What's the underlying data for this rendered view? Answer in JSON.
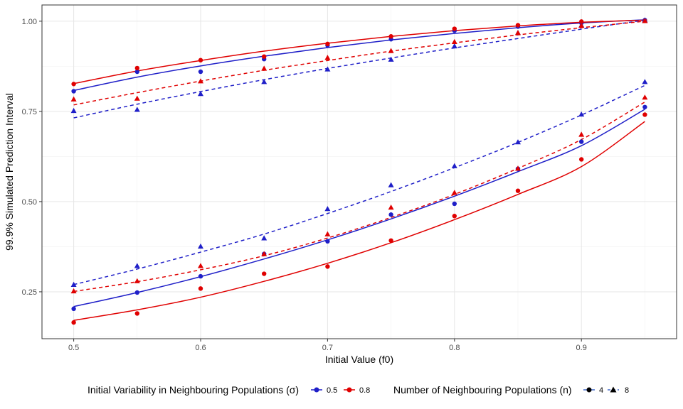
{
  "chart_data": {
    "type": "scatter",
    "xlabel": "Initial Value (f0)",
    "ylabel": "99.9% Simulated Prediction Interval",
    "xlim": [
      0.475,
      0.975
    ],
    "ylim": [
      0.12,
      1.045
    ],
    "x_ticks": [
      {
        "value": 0.5,
        "label": "0.5"
      },
      {
        "value": 0.6,
        "label": "0.6"
      },
      {
        "value": 0.7,
        "label": "0.7"
      },
      {
        "value": 0.8,
        "label": "0.8"
      },
      {
        "value": 0.9,
        "label": "0.9"
      }
    ],
    "y_ticks": [
      {
        "value": 0.25,
        "label": "0.25"
      },
      {
        "value": 0.5,
        "label": "0.50"
      },
      {
        "value": 0.75,
        "label": "0.75"
      },
      {
        "value": 1.0,
        "label": "1.00"
      }
    ],
    "grid": true,
    "legend_position": "bottom",
    "colors": {
      "sigma_0.5": "#1f1fc8",
      "sigma_0.8": "#e00000"
    },
    "x": [
      0.5,
      0.55,
      0.6,
      0.65,
      0.7,
      0.75,
      0.8,
      0.85,
      0.9,
      0.95
    ],
    "series": [
      {
        "sigma": "0.5",
        "n": "4",
        "bound": "upper",
        "points": [
          0.806,
          0.86,
          0.86,
          0.895,
          0.933,
          0.95,
          0.974,
          0.985,
          0.995,
          1.003
        ],
        "fit": [
          0.808,
          0.845,
          0.876,
          0.903,
          0.927,
          0.948,
          0.966,
          0.982,
          0.995,
          1.004
        ]
      },
      {
        "sigma": "0.8",
        "n": "4",
        "bound": "upper",
        "points": [
          0.826,
          0.87,
          0.892,
          0.902,
          0.937,
          0.958,
          0.979,
          0.989,
          0.999,
          1.001
        ],
        "fit": [
          0.827,
          0.862,
          0.891,
          0.917,
          0.939,
          0.958,
          0.974,
          0.987,
          0.997,
          1.003
        ]
      },
      {
        "sigma": "0.5",
        "n": "8",
        "bound": "upper",
        "points": [
          0.752,
          0.755,
          0.799,
          0.832,
          0.867,
          0.894,
          0.931,
          0.968,
          0.989,
          1.003
        ],
        "fit": [
          0.732,
          0.77,
          0.805,
          0.838,
          0.869,
          0.898,
          0.926,
          0.952,
          0.978,
          1.003
        ]
      },
      {
        "sigma": "0.8",
        "n": "8",
        "bound": "upper",
        "points": [
          0.784,
          0.786,
          0.834,
          0.869,
          0.899,
          0.918,
          0.943,
          0.968,
          0.988,
          1.001
        ],
        "fit": [
          0.768,
          0.802,
          0.834,
          0.864,
          0.891,
          0.917,
          0.94,
          0.962,
          0.982,
          1.0
        ]
      },
      {
        "sigma": "0.5",
        "n": "4",
        "bound": "lower",
        "points": [
          0.203,
          0.248,
          0.293,
          0.355,
          0.39,
          0.464,
          0.494,
          0.591,
          0.666,
          0.762
        ],
        "fit": [
          0.209,
          0.248,
          0.292,
          0.341,
          0.394,
          0.452,
          0.515,
          0.583,
          0.655,
          0.756
        ]
      },
      {
        "sigma": "0.8",
        "n": "4",
        "bound": "lower",
        "points": [
          0.165,
          0.19,
          0.259,
          0.3,
          0.32,
          0.392,
          0.46,
          0.53,
          0.617,
          0.741
        ],
        "fit": [
          0.171,
          0.2,
          0.235,
          0.279,
          0.329,
          0.386,
          0.45,
          0.52,
          0.597,
          0.722
        ]
      },
      {
        "sigma": "0.5",
        "n": "8",
        "bound": "lower",
        "points": [
          0.27,
          0.322,
          0.376,
          0.399,
          0.48,
          0.546,
          0.599,
          0.665,
          0.742,
          0.832
        ],
        "fit": [
          0.27,
          0.313,
          0.36,
          0.41,
          0.467,
          0.528,
          0.594,
          0.664,
          0.74,
          0.822
        ]
      },
      {
        "sigma": "0.8",
        "n": "8",
        "bound": "lower",
        "points": [
          0.252,
          0.28,
          0.322,
          0.355,
          0.41,
          0.484,
          0.525,
          0.592,
          0.686,
          0.789
        ],
        "fit": [
          0.251,
          0.278,
          0.311,
          0.35,
          0.399,
          0.456,
          0.52,
          0.592,
          0.672,
          0.776
        ]
      }
    ],
    "legend": {
      "sigma_title": "Initial Variability in Neighbouring Populations (σ)",
      "sigma_items": [
        {
          "label": "0.5",
          "color": "#1f1fc8"
        },
        {
          "label": "0.8",
          "color": "#e00000"
        }
      ],
      "n_title": "Number of Neighbouring Populations (n)",
      "n_items": [
        {
          "label": "4",
          "shape": "circle",
          "line": "solid"
        },
        {
          "label": "8",
          "shape": "triangle",
          "line": "dashed"
        }
      ]
    }
  }
}
